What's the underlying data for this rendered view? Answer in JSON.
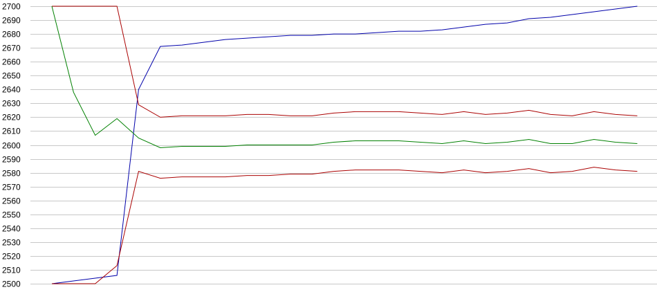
{
  "chart_data": {
    "type": "line",
    "title": "",
    "xlabel": "",
    "ylabel": "",
    "ylim": [
      2500,
      2700
    ],
    "yticks": [
      2500,
      2510,
      2520,
      2530,
      2540,
      2550,
      2560,
      2570,
      2580,
      2590,
      2600,
      2610,
      2620,
      2630,
      2640,
      2650,
      2660,
      2670,
      2680,
      2690,
      2700
    ],
    "grid": true,
    "x": [
      0,
      1,
      2,
      3,
      4,
      5,
      6,
      7,
      8,
      9,
      10,
      11,
      12,
      13,
      14,
      15,
      16,
      17,
      18,
      19,
      20,
      21,
      22,
      23,
      24,
      25,
      26,
      27
    ],
    "series": [
      {
        "color": "#0000aa",
        "values": [
          2500,
          2502,
          2504,
          2506,
          2640,
          2671,
          2672,
          2674,
          2676,
          2677,
          2678,
          2679,
          2679,
          2680,
          2680,
          2681,
          2682,
          2682,
          2683,
          2685,
          2687,
          2688,
          2691,
          2692,
          2694,
          2696,
          2698,
          2700
        ]
      },
      {
        "color": "#aa0000",
        "values": [
          2700,
          2700,
          2700,
          2700,
          2629,
          2620,
          2621,
          2621,
          2621,
          2622,
          2622,
          2621,
          2621,
          2623,
          2624,
          2624,
          2624,
          2623,
          2622,
          2624,
          2622,
          2623,
          2625,
          2622,
          2621,
          2624,
          2622,
          2621
        ]
      },
      {
        "color": "#008000",
        "values": [
          2700,
          2638,
          2607,
          2619,
          2605,
          2598,
          2599,
          2599,
          2599,
          2600,
          2600,
          2600,
          2600,
          2602,
          2603,
          2603,
          2603,
          2602,
          2601,
          2603,
          2601,
          2602,
          2604,
          2601,
          2601,
          2604,
          2602,
          2601
        ]
      },
      {
        "color": "#aa0000",
        "values": [
          2500,
          2500,
          2500,
          2513,
          2581,
          2576,
          2577,
          2577,
          2577,
          2578,
          2578,
          2579,
          2579,
          2581,
          2582,
          2582,
          2582,
          2581,
          2580,
          2582,
          2580,
          2581,
          2583,
          2580,
          2581,
          2584,
          2582,
          2581
        ]
      }
    ]
  }
}
